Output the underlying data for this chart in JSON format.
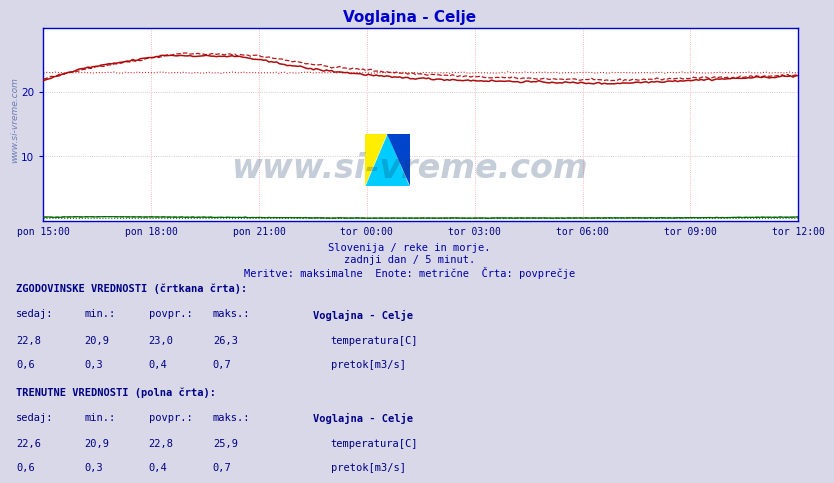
{
  "title": "Voglajna - Celje",
  "title_color": "#0000cc",
  "bg_color": "#d8d8e8",
  "plot_bg_color": "#ffffff",
  "grid_color_v": "#ff9999",
  "grid_color_h": "#ddaaaa",
  "axis_color": "#0000cc",
  "ylabel_color": "#0000aa",
  "xlabels": [
    "pon 15:00",
    "pon 18:00",
    "pon 21:00",
    "tor 00:00",
    "tor 03:00",
    "tor 06:00",
    "tor 09:00",
    "tor 12:00"
  ],
  "ylim": [
    0,
    30
  ],
  "yticks": [
    10,
    20
  ],
  "temp_color": "#aa0000",
  "pretok_color": "#006600",
  "avg_line_color": "#cc0000",
  "subtitle1": "Slovenija / reke in morje.",
  "subtitle2": "zadnji dan / 5 minut.",
  "subtitle3": "Meritve: maksimalne  Enote: metrične  Črta: povprečje",
  "subtitle_color": "#0000aa",
  "table_header_color": "#000088",
  "table_value_color": "#000088",
  "watermark": "www.si-vreme.com",
  "watermark_color": "#1a3a6a",
  "n_points": 289,
  "temp_avg": 23.0,
  "pretok_avg": 0.4
}
